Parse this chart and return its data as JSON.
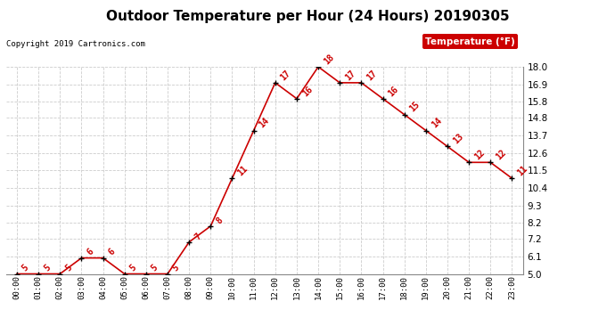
{
  "title": "Outdoor Temperature per Hour (24 Hours) 20190305",
  "copyright": "Copyright 2019 Cartronics.com",
  "legend_label": "Temperature (°F)",
  "hours": [
    "00:00",
    "01:00",
    "02:00",
    "03:00",
    "04:00",
    "05:00",
    "06:00",
    "07:00",
    "08:00",
    "09:00",
    "10:00",
    "11:00",
    "12:00",
    "13:00",
    "14:00",
    "15:00",
    "16:00",
    "17:00",
    "18:00",
    "19:00",
    "20:00",
    "21:00",
    "22:00",
    "23:00"
  ],
  "temps": [
    5,
    5,
    5,
    6,
    6,
    5,
    5,
    5,
    7,
    8,
    11,
    14,
    17,
    16,
    18,
    17,
    17,
    16,
    15,
    14,
    13,
    12,
    12,
    11
  ],
  "ylim": [
    5.0,
    18.0
  ],
  "yticks": [
    5.0,
    6.1,
    7.2,
    8.2,
    9.3,
    10.4,
    11.5,
    12.6,
    13.7,
    14.8,
    15.8,
    16.9,
    18.0
  ],
  "line_color": "#cc0000",
  "marker_color": "#000000",
  "label_color": "#cc0000",
  "background_color": "#ffffff",
  "grid_color": "#cccccc",
  "title_fontsize": 11,
  "legend_bg": "#cc0000",
  "legend_fg": "#ffffff"
}
